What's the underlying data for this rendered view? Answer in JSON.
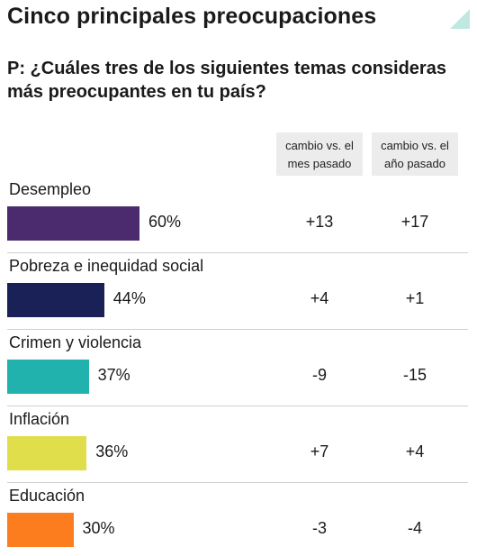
{
  "title": "Cinco principales preocupaciones",
  "question": "P: ¿Cuáles tres de los siguientes temas consideras más preocupantes en tu país?",
  "columns": {
    "month": "cambio vs. el mes pasado",
    "year": "cambio vs. el año pasado"
  },
  "chart_data": {
    "type": "bar",
    "orientation": "horizontal",
    "categories": [
      "Desempleo",
      "Pobreza e inequidad social",
      "Crimen y violencia",
      "Inflación",
      "Educación"
    ],
    "values": [
      60,
      44,
      37,
      36,
      30
    ],
    "value_labels": [
      "60%",
      "44%",
      "37%",
      "36%",
      "30%"
    ],
    "change_vs_last_month": [
      "+13",
      "+4",
      "-9",
      "+7",
      "-3"
    ],
    "change_vs_last_year": [
      "+17",
      "+1",
      "-15",
      "+4",
      "-4"
    ],
    "colors": [
      "#4b2a6e",
      "#1a2157",
      "#22b2ad",
      "#e1de4c",
      "#fb7d1d"
    ],
    "xlim": [
      0,
      100
    ]
  }
}
